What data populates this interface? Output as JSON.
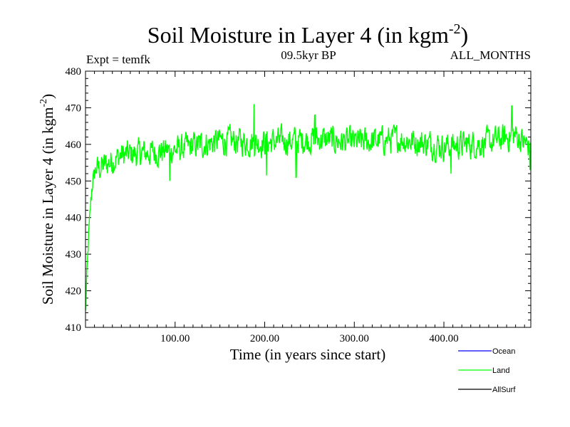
{
  "chart_data": {
    "type": "line",
    "title": "Soil Moisture in Layer 4 (in kgm",
    "title_sup": "-2",
    "title_close": ")",
    "expt_label": "Expt = temfk",
    "period_label": "09.5kyr BP",
    "months_label": "ALL_MONTHS",
    "xlabel": "Time (in years since start)",
    "ylabel": "Soil Moisture in Layer 4 (in kgm",
    "ylabel_sup": "-2",
    "ylabel_close": ")",
    "xlim": [
      0,
      497
    ],
    "ylim": [
      410,
      480
    ],
    "x_ticks": [
      100,
      200,
      300,
      400
    ],
    "x_tick_labels": [
      "100.00",
      "200.00",
      "300.00",
      "400.00"
    ],
    "y_ticks": [
      410,
      420,
      430,
      440,
      450,
      460,
      470,
      480
    ],
    "y_tick_labels": [
      "410",
      "420",
      "430",
      "440",
      "450",
      "460",
      "470",
      "480"
    ],
    "legend": [
      {
        "name": "Ocean",
        "color": "#0000ff"
      },
      {
        "name": "Land",
        "color": "#00ff00"
      },
      {
        "name": "AllSurf",
        "color": "#000000"
      }
    ],
    "series": [
      {
        "name": "Land",
        "color": "#00ff00",
        "x_start": 0,
        "x_end": 497,
        "n_points": 1000,
        "initial_value": 414,
        "spinup_end_year": 12,
        "spinup_value": 453,
        "anchors": [
          {
            "x": 12,
            "mean": 453
          },
          {
            "x": 40,
            "mean": 457
          },
          {
            "x": 100,
            "mean": 458.5
          },
          {
            "x": 150,
            "mean": 461
          },
          {
            "x": 200,
            "mean": 460.5
          },
          {
            "x": 260,
            "mean": 461.5
          },
          {
            "x": 300,
            "mean": 460.5
          },
          {
            "x": 350,
            "mean": 461.5
          },
          {
            "x": 400,
            "mean": 459.5
          },
          {
            "x": 450,
            "mean": 460.5
          },
          {
            "x": 480,
            "mean": 462.5
          },
          {
            "x": 497,
            "mean": 459
          }
        ],
        "noise_amplitude": 3.2,
        "peaks": [
          {
            "x": 188,
            "value": 471
          },
          {
            "x": 256,
            "value": 468
          },
          {
            "x": 476,
            "value": 470.5
          }
        ],
        "troughs": [
          {
            "x": 94,
            "value": 450
          },
          {
            "x": 202,
            "value": 451.5
          },
          {
            "x": 235,
            "value": 451
          },
          {
            "x": 408,
            "value": 452
          },
          {
            "x": 496,
            "value": 453
          }
        ]
      }
    ]
  }
}
